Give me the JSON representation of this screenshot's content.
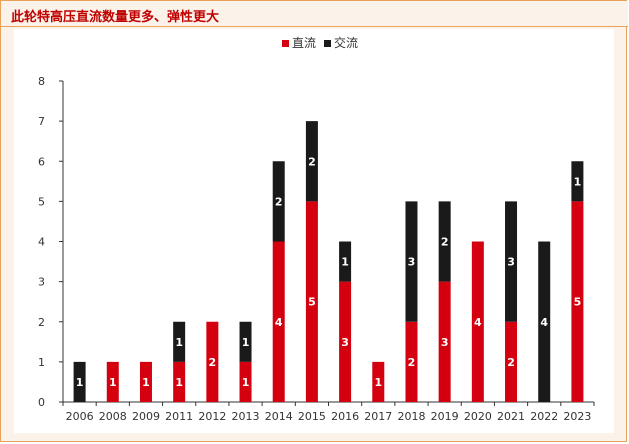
{
  "title": "此轮特高压直流数量更多、弹性更大",
  "chart_data": {
    "type": "bar",
    "stacked": true,
    "categories": [
      "2006",
      "2008",
      "2009",
      "2011",
      "2012",
      "2013",
      "2014",
      "2015",
      "2016",
      "2017",
      "2018",
      "2019",
      "2020",
      "2021",
      "2022",
      "2023"
    ],
    "series": [
      {
        "name": "直流",
        "color": "#d4000f",
        "values": [
          0,
          1,
          1,
          1,
          2,
          1,
          4,
          5,
          3,
          1,
          2,
          3,
          4,
          2,
          0,
          5
        ]
      },
      {
        "name": "交流",
        "color": "#1a1a1a",
        "values": [
          1,
          0,
          0,
          1,
          0,
          1,
          2,
          2,
          1,
          0,
          3,
          2,
          0,
          3,
          4,
          1
        ]
      }
    ],
    "ylim": [
      0,
      8
    ],
    "yticks": [
      0,
      1,
      2,
      3,
      4,
      5,
      6,
      7,
      8
    ],
    "legend": "top-center",
    "grid": false
  }
}
